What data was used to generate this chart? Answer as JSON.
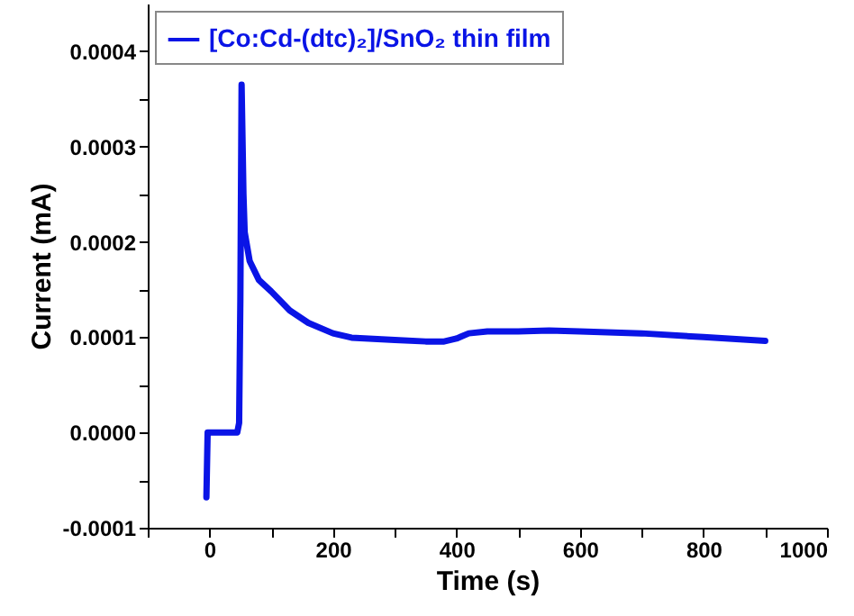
{
  "chart_data": {
    "type": "line",
    "xlabel": "Time (s)",
    "ylabel": "Current (mA)",
    "xlim": [
      -100,
      1000
    ],
    "ylim": [
      -0.0001,
      0.00045
    ],
    "xticks": [
      {
        "value": -100,
        "label": null
      },
      0,
      {
        "value": 100,
        "label": null
      },
      200,
      {
        "value": 300,
        "label": null
      },
      400,
      {
        "value": 500,
        "label": null
      },
      600,
      {
        "value": 700,
        "label": null
      },
      800,
      {
        "value": 900,
        "label": null
      },
      1000
    ],
    "yticks": [
      {
        "value": -0.0001,
        "label": "-0.0001"
      },
      {
        "value": -5e-05,
        "label": null
      },
      {
        "value": 0,
        "label": "0.0000"
      },
      {
        "value": 5e-05,
        "label": null
      },
      {
        "value": 0.0001,
        "label": "0.0001"
      },
      {
        "value": 0.00015,
        "label": null
      },
      {
        "value": 0.0002,
        "label": "0.0002"
      },
      {
        "value": 0.00025,
        "label": null
      },
      {
        "value": 0.0003,
        "label": "0.0003"
      },
      {
        "value": 0.00035,
        "label": null
      },
      {
        "value": 0.0004,
        "label": "0.0004"
      }
    ],
    "legend": "top left",
    "grid": false,
    "series": [
      {
        "name": "[Co:Cd-(dtc)₂]/SnO₂ thin film",
        "color": "#0a14e6",
        "x": [
          -5,
          -3,
          0,
          45,
          48,
          50,
          52,
          55,
          57,
          65,
          80,
          100,
          130,
          160,
          200,
          230,
          300,
          350,
          380,
          400,
          420,
          450,
          500,
          550,
          600,
          700,
          800,
          900
        ],
        "values": [
          -6.8e-05,
          0,
          0,
          0,
          1e-05,
          0.00014,
          0.000365,
          0.00025,
          0.00021,
          0.00018,
          0.00016,
          0.000148,
          0.000128,
          0.000115,
          0.000104,
          9.95e-05,
          9.7e-05,
          9.55e-05,
          9.55e-05,
          9.85e-05,
          0.000104,
          0.000106,
          0.000106,
          0.000107,
          0.000106,
          0.000104,
          0.0001,
          9.6e-05
        ]
      }
    ]
  }
}
